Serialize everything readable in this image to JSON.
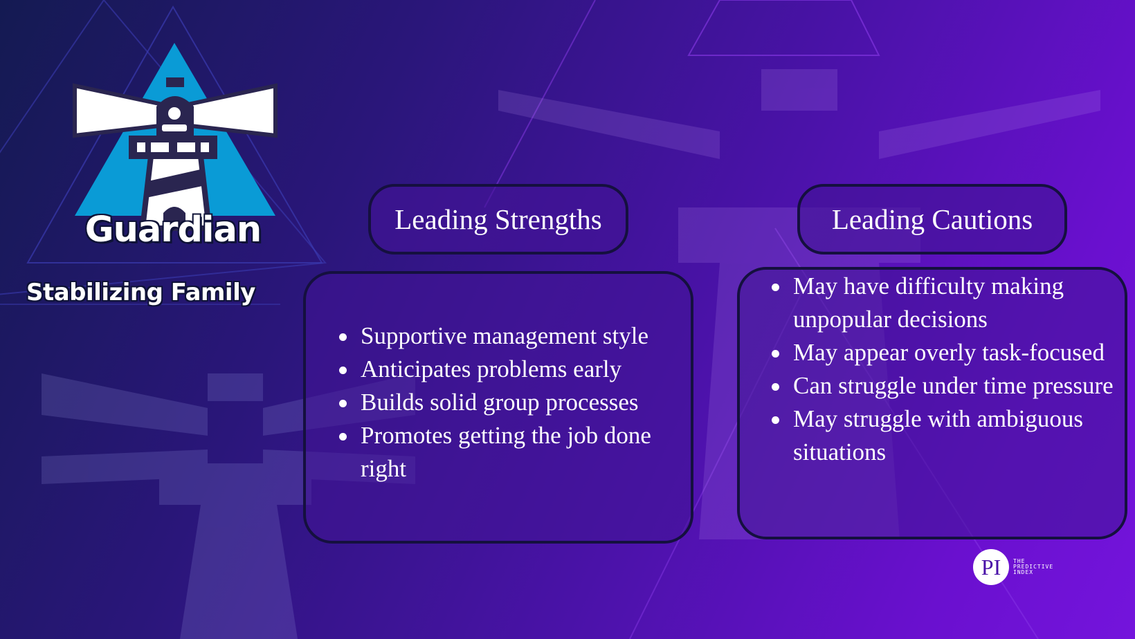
{
  "logo": {
    "icon": "lighthouse-icon",
    "title": "Guardian",
    "family": "Stabilizing Family",
    "colors": {
      "triangle": "#0a9bd6",
      "outline": "#2a2550",
      "beams": "#ffffff"
    }
  },
  "strengths": {
    "heading": "Leading Strengths",
    "items": [
      "Supportive management style",
      "Anticipates problems early",
      "Builds solid group processes",
      "Promotes getting the job done right"
    ]
  },
  "cautions": {
    "heading": "Leading Cautions",
    "items": [
      "May have difficulty making unpopular decisions",
      "May appear overly task-focused",
      "Can struggle under time pressure",
      "May struggle with ambiguous situations"
    ]
  },
  "brand": {
    "badge": "PI",
    "name": "THE PREDICTIVE INDEX"
  },
  "theme": {
    "background_start": "#141a52",
    "background_end": "#7414dc",
    "panel_border": "#15103f"
  }
}
